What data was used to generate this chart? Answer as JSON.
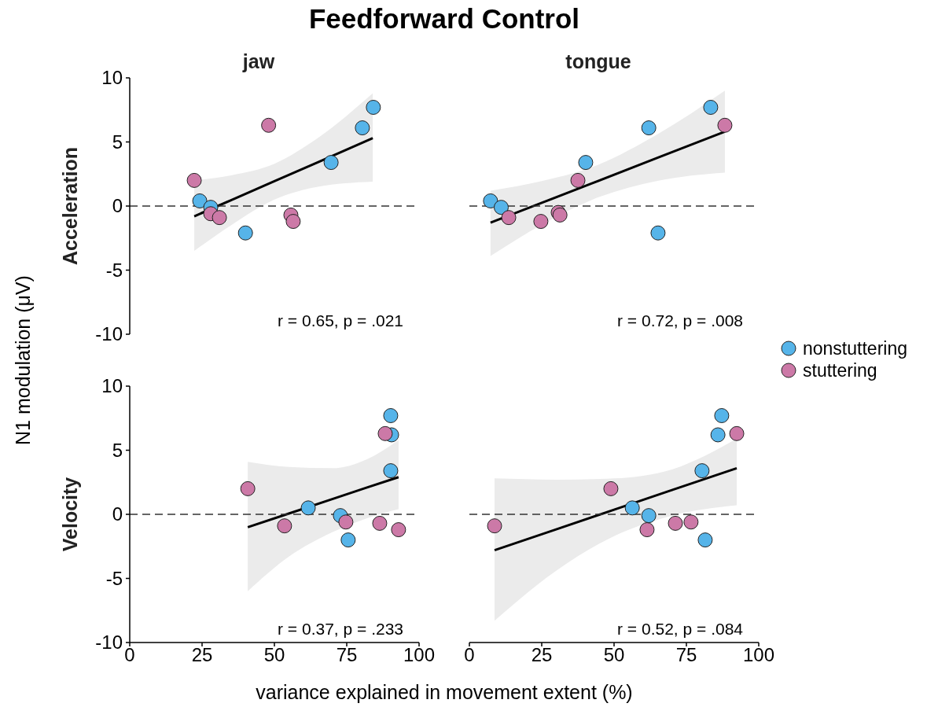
{
  "chart_data": [
    {
      "type": "scatter",
      "title": "Feedforward Control",
      "subtitle": "jaw",
      "ylabel": "Acceleration",
      "annotations": [
        "r = 0.65, p = .021",
        "N1 modulation (μV)"
      ],
      "xlim": [
        0,
        100
      ],
      "ylim": [
        -10,
        10
      ],
      "yticks": [
        -10,
        -5,
        0,
        5,
        10
      ],
      "tick_labels": "y",
      "marker": "circle",
      "grid": false,
      "ref_lines": [
        {
          "axis": "y",
          "value": 0,
          "line_style": "dashed",
          "color": "#333333"
        }
      ],
      "series": [
        {
          "color": "#56b4e9",
          "x": [
            24.2,
            28,
            40,
            69.6,
            80.4,
            84.2
          ],
          "values": [
            0.4,
            -0.1,
            -2.1,
            3.4,
            6.1,
            7.7
          ]
        },
        {
          "color": "#cc79a7",
          "x": [
            22.3,
            28,
            31,
            48,
            55.7,
            56.5
          ],
          "values": [
            2.0,
            -0.6,
            -0.9,
            6.3,
            -0.7,
            -1.2
          ]
        },
        {
          "type": "line",
          "marker": "none",
          "color": "#000000",
          "x": [
            22.3,
            35,
            50,
            65,
            84
          ],
          "values": [
            -0.8,
            0.46,
            1.94,
            3.42,
            5.3
          ],
          "lower": [
            -3.5,
            -1.5,
            0.5,
            1.5,
            1.9
          ],
          "upper": [
            2.0,
            2.4,
            3.3,
            5.3,
            8.8
          ]
        }
      ]
    },
    {
      "type": "scatter",
      "subtitle": "tongue",
      "annotations": [
        "r = 0.72, p = .008"
      ],
      "xlim": [
        0,
        100
      ],
      "ylim": [
        -10,
        10
      ],
      "tick_labels": false,
      "marker": "circle",
      "grid": false,
      "legend": "right",
      "ref_lines": [
        {
          "axis": "y",
          "value": 0,
          "line_style": "dashed",
          "color": "#333333"
        }
      ],
      "series": [
        {
          "name": "nonstuttering",
          "color": "#56b4e9",
          "x": [
            7.3,
            11,
            40.2,
            62,
            83.4,
            65.2
          ],
          "values": [
            0.4,
            -0.1,
            3.4,
            6.1,
            7.7,
            -2.1
          ]
        },
        {
          "name": "stuttering",
          "color": "#cc79a7",
          "x": [
            13.6,
            24.7,
            30.7,
            31.3,
            37.5,
            88.3
          ],
          "values": [
            -0.9,
            -1.2,
            -0.5,
            -0.7,
            2.0,
            6.3
          ]
        },
        {
          "type": "line",
          "marker": "none",
          "color": "#000000",
          "x": [
            7.3,
            25,
            42,
            65,
            88.3
          ],
          "values": [
            -1.3,
            0.25,
            1.74,
            3.76,
            5.8
          ],
          "lower": [
            -3.9,
            -1.45,
            0.45,
            1.96,
            2.6
          ],
          "upper": [
            1.2,
            1.95,
            3.0,
            5.6,
            9.0
          ]
        }
      ]
    },
    {
      "type": "scatter",
      "ylabel": "Velocity",
      "xlabel": "variance explained in movement extent (%)",
      "annotations": [
        "r = 0.37, p = .233"
      ],
      "xlim": [
        0,
        100
      ],
      "ylim": [
        -10,
        10
      ],
      "xticks": [
        0,
        25,
        50,
        75,
        100
      ],
      "yticks": [
        -10,
        -5,
        0,
        5,
        10
      ],
      "marker": "circle",
      "grid": false,
      "ref_lines": [
        {
          "axis": "y",
          "value": 0,
          "line_style": "dashed",
          "color": "#333333"
        }
      ],
      "series": [
        {
          "color": "#56b4e9",
          "x": [
            90.2,
            90.5,
            90.2,
            61.7,
            72.8,
            75.5
          ],
          "values": [
            7.7,
            6.2,
            3.4,
            0.5,
            -0.1,
            -2.0
          ]
        },
        {
          "color": "#cc79a7",
          "x": [
            88.3,
            40.8,
            53.5,
            74.7,
            86.4,
            92.9
          ],
          "values": [
            6.3,
            2.0,
            -0.9,
            -0.6,
            -0.7,
            -1.2
          ]
        },
        {
          "type": "line",
          "marker": "none",
          "color": "#000000",
          "x": [
            40.8,
            55,
            70,
            82,
            92.9
          ],
          "values": [
            -1.0,
            0.06,
            1.19,
            2.09,
            2.9
          ],
          "lower": [
            -6.0,
            -3.3,
            -1.4,
            -0.3,
            0.4
          ],
          "upper": [
            4.1,
            3.7,
            3.6,
            4.3,
            5.8
          ]
        }
      ]
    },
    {
      "type": "scatter",
      "annotations": [
        "r = 0.52, p = .084"
      ],
      "xlim": [
        0,
        100
      ],
      "ylim": [
        -10,
        10
      ],
      "xticks": [
        0,
        25,
        50,
        75,
        100
      ],
      "tick_labels": "x",
      "marker": "circle",
      "grid": false,
      "ref_lines": [
        {
          "axis": "y",
          "value": 0,
          "line_style": "dashed",
          "color": "#333333"
        }
      ],
      "series": [
        {
          "color": "#56b4e9",
          "x": [
            87.2,
            85.9,
            80.4,
            56.3,
            62,
            81.5
          ],
          "values": [
            7.7,
            6.2,
            3.4,
            0.5,
            -0.1,
            -2.0
          ]
        },
        {
          "color": "#cc79a7",
          "x": [
            92.4,
            48.9,
            8.7,
            61.4,
            71.2,
            76.6
          ],
          "values": [
            6.3,
            2.0,
            -0.9,
            -1.2,
            -0.7,
            -0.6
          ]
        },
        {
          "type": "line",
          "marker": "none",
          "color": "#000000",
          "x": [
            8.7,
            30,
            50,
            70,
            92.4
          ],
          "values": [
            -2.8,
            -1.17,
            0.36,
            1.89,
            3.6
          ],
          "lower": [
            -8.3,
            -4.4,
            -1.7,
            -0.1,
            0.7
          ],
          "upper": [
            2.8,
            2.7,
            2.8,
            3.5,
            5.9
          ]
        }
      ]
    }
  ]
}
